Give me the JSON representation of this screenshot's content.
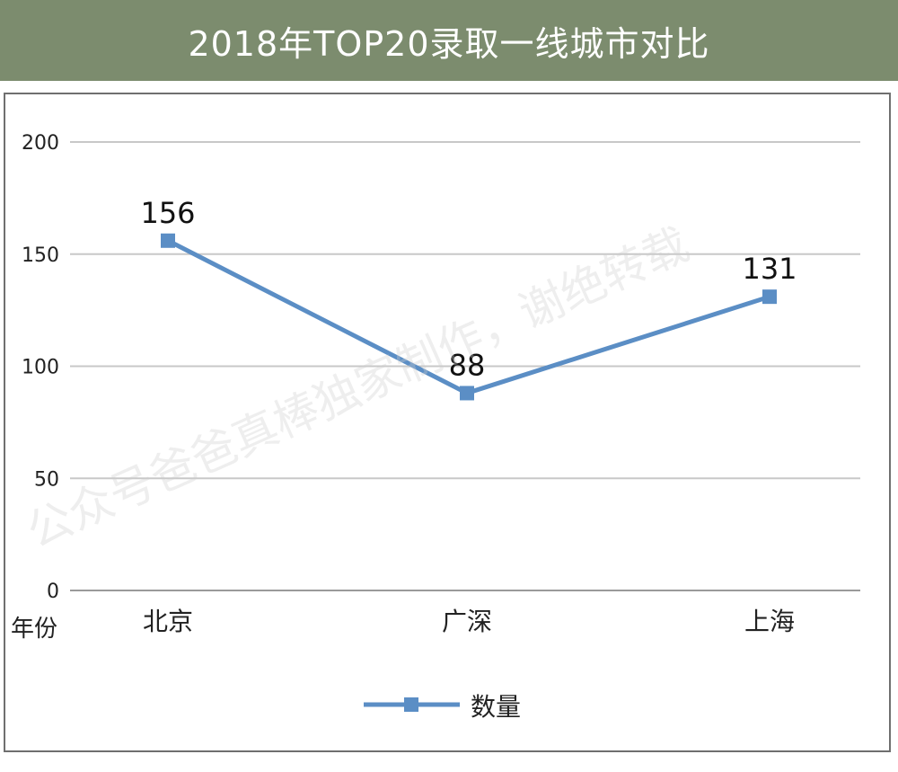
{
  "chart_data": {
    "type": "line",
    "title": "2018年TOP20录取一线城市对比",
    "xlabel": "年份",
    "ylabel": "",
    "categories": [
      "北京",
      "广深",
      "上海"
    ],
    "series": [
      {
        "name": "数量",
        "values": [
          156,
          88,
          131
        ],
        "labels": [
          "156",
          "88",
          "131"
        ]
      }
    ],
    "ylim": [
      0,
      200
    ],
    "yticks": [
      0,
      50,
      100,
      150,
      200
    ],
    "grid": true,
    "legend": "bottom",
    "colors": {
      "line": "#5b8ec5",
      "grid": "#c8c8c8",
      "title_bg": "#7c8c6e"
    }
  },
  "watermark": "公众号爸爸真棒独家制作，谢绝转载"
}
